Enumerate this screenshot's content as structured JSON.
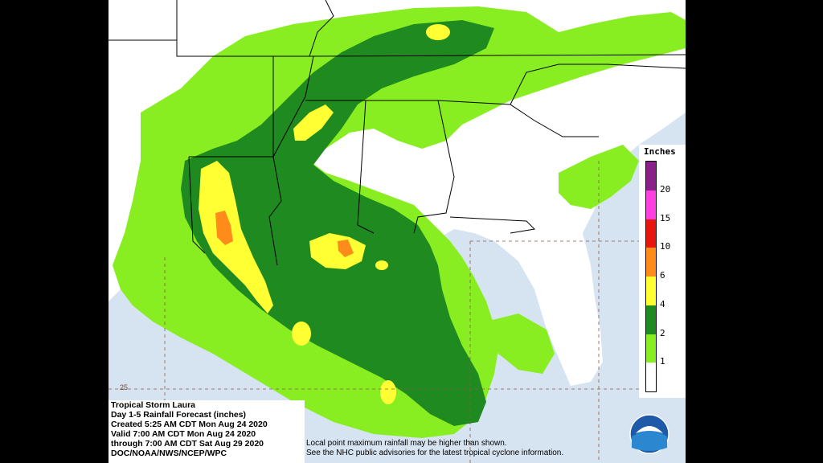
{
  "map": {
    "title_lines": [
      "Tropical Storm Laura",
      "Day 1-5 Rainfall Forecast (inches)",
      "Created 5:25 AM CDT Mon Aug 24 2020",
      "Valid 7:00 AM CDT Mon Aug 24 2020",
      "through 7:00 AM CDT Sat Aug 29 2020",
      "DOC/NOAA/NWS/NCEP/WPC"
    ],
    "note_lines": [
      "Local point maximum rainfall may be higher than shown.",
      "See the NHC public advisories for the latest tropical cyclone information."
    ],
    "lat_label": "25",
    "logo_text": "NOAA"
  },
  "legend": {
    "title": "Inches",
    "bins": [
      {
        "label": "20",
        "color": "#8a1f8a"
      },
      {
        "label": "15",
        "color": "#ff3fe0"
      },
      {
        "label": "10",
        "color": "#e8150d"
      },
      {
        "label": "6",
        "color": "#ff8c1a"
      },
      {
        "label": "4",
        "color": "#ffff33"
      },
      {
        "label": "2",
        "color": "#1f8a1f"
      },
      {
        "label": "1",
        "color": "#88ee22"
      },
      {
        "label": "",
        "color": "#ffffff"
      }
    ]
  },
  "colors": {
    "ocean": "#d6e3f0",
    "land": "#ffffff",
    "light_green": "#88ee22",
    "dark_green": "#1f8a1f",
    "yellow": "#ffff33",
    "orange": "#ff8c1a",
    "border": "#000000",
    "grid": "#8a5a4a"
  }
}
